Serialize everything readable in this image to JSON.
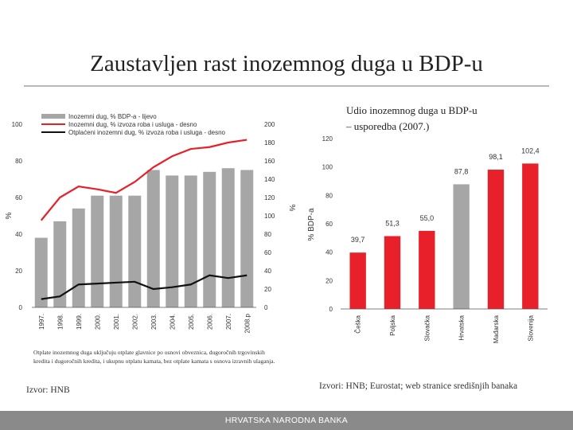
{
  "slide": {
    "title": "Zaustavljen rast inozemnog duga u BDP-u",
    "note": "Otplate inozemnog duga uključuju otplate glavnice po osnovi obveznica, dugoročnih trgovinskih kredita i dugoročnih kredita, i ukupnu otplatu kamata, bez otplate kamata s osnova izravnih ulaganja.",
    "source_left": "Izvor: HNB",
    "source_right": "Izvori: HNB; Eurostat; web stranice središnjih banaka",
    "footer": "HRVATSKA NARODNA BANKA"
  },
  "chart_data": [
    {
      "type": "bar",
      "categories": [
        "1997.",
        "1998.",
        "1999.",
        "2000.",
        "2001.",
        "2002.",
        "2003.",
        "2004.",
        "2005.",
        "2006.",
        "2007.",
        "2008.p"
      ],
      "series": [
        {
          "name": "Inozemni dug, % BDP-a - lijevo",
          "type": "bar",
          "axis": "left",
          "color": "#a6a6a6",
          "values": [
            38,
            47,
            54,
            61,
            61,
            61,
            75,
            72,
            72,
            74,
            76,
            75
          ]
        },
        {
          "name": "Inozemni dug, % izvoza roba i usluga - desno",
          "type": "line",
          "axis": "right",
          "color": "#e8202a",
          "values": [
            95,
            120,
            132,
            129,
            125,
            137,
            153,
            165,
            173,
            175,
            180,
            183
          ]
        },
        {
          "name": "Otplaćeni inozemni dug, % izvoza roba i usluga - desno",
          "type": "line",
          "axis": "right",
          "color": "#111111",
          "values": [
            9,
            12,
            25,
            26,
            27,
            28,
            20,
            22,
            25,
            35,
            32,
            35
          ]
        }
      ],
      "ylabel": "%",
      "y2label": "%",
      "ylim": [
        0,
        100
      ],
      "y2lim": [
        0,
        200
      ],
      "yticks": [
        "0",
        "20",
        "40",
        "60",
        "80",
        "100"
      ],
      "y2ticks": [
        "0",
        "20",
        "40",
        "60",
        "80",
        "100",
        "120",
        "140",
        "160",
        "180",
        "200"
      ],
      "legend": "top-left"
    },
    {
      "type": "bar",
      "title": "Udio inozemnog duga u BDP-u – usporedba (2007.)",
      "categories": [
        "Češka",
        "Poljska",
        "Slovačka",
        "Hrvatska",
        "Mađarska",
        "Slovenija"
      ],
      "values": [
        39.7,
        51.3,
        55.0,
        87.8,
        98.1,
        102.4
      ],
      "value_labels": [
        "39,7",
        "51,3",
        "55,0",
        "87,8",
        "98,1",
        "102,4"
      ],
      "colors": [
        "#e8202a",
        "#e8202a",
        "#e8202a",
        "#a6a6a6",
        "#e8202a",
        "#e8202a"
      ],
      "ylabel": "% BDP-a",
      "ylim": [
        0,
        120
      ],
      "yticks": [
        "0",
        "20",
        "40",
        "60",
        "80",
        "100",
        "120"
      ]
    }
  ]
}
